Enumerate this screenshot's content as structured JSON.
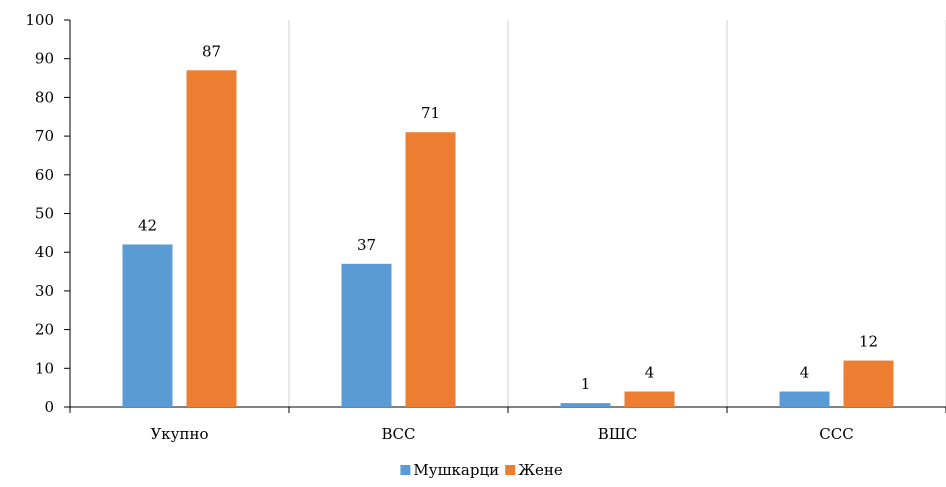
{
  "chart_data": {
    "type": "bar",
    "title": "",
    "xlabel": "",
    "ylabel": "",
    "categories": [
      "Укупно",
      "ВСС",
      "ВШС",
      "ССС"
    ],
    "series": [
      {
        "name": "Мушкарци",
        "color": "#5b9bd5",
        "values": [
          42,
          37,
          1,
          4
        ]
      },
      {
        "name": "Жене",
        "color": "#ed7d31",
        "values": [
          87,
          71,
          4,
          12
        ]
      }
    ],
    "ylim": [
      0,
      100
    ],
    "yticks": [
      0,
      10,
      20,
      30,
      40,
      50,
      60,
      70,
      80,
      90,
      100
    ],
    "grid": "vertical",
    "legend": "bottom",
    "data_labels": true
  }
}
